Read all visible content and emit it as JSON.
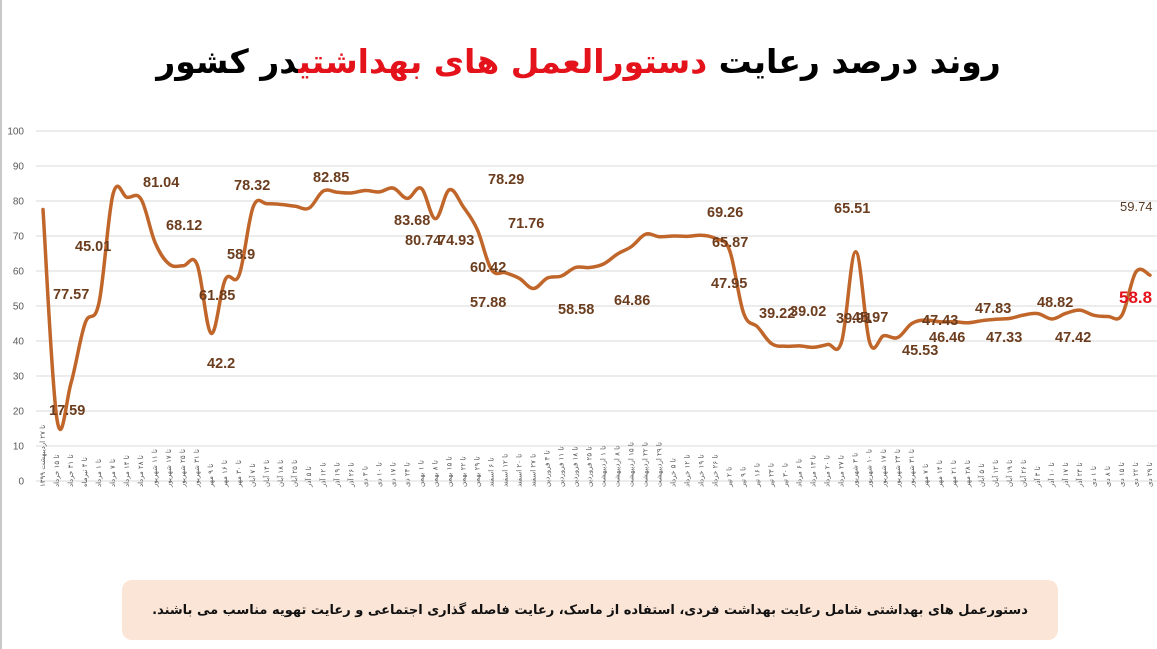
{
  "title": {
    "part1": "روند درصد رعایت ",
    "highlight": "دستورالعمل های بهداشتی",
    "part2": "در کشور",
    "highlight_color": "#e3121b"
  },
  "note": "دستورعمل های بهداشتی شامل رعایت بهداشت فردی، استفاده از ماسک، رعایت فاصله گذاری اجتماعی و رعایت تهویه مناسب می باشند.",
  "chart_data": {
    "type": "line",
    "title": "روند درصد رعایت دستورالعمل های بهداشتی در کشور",
    "xlabel": "",
    "ylabel": "",
    "ylim": [
      0,
      100
    ],
    "yticks": [
      0,
      10,
      20,
      30,
      40,
      50,
      60,
      70,
      80,
      90,
      100
    ],
    "grid": true,
    "legend": "none",
    "line_color": "#c0662a",
    "categories": [
      "تا ۲۷ اردیبهشت ۱۳۹۹",
      "تا ۱۵ خرداد",
      "تا ۳۱ خرداد",
      "تا ۴ تیرماه",
      "تا ۱ مرداد",
      "تا ۷ مرداد",
      "تا ۱۴ مرداد",
      "تا ۲۸ مرداد",
      "تا ۱۱ شهریور",
      "تا ۱۷ شهریور",
      "تا ۲۵ شهریور",
      "تا ۳۱ شهریور",
      "تا ۹ مهر",
      "تا ۱۶ مهر",
      "تا ۳۰ مهر",
      "تا ۷ آبان",
      "تا ۱۴ آبان",
      "تا ۱۸ آبان",
      "تا ۲۵ آبان",
      "تا ۵ آذر",
      "تا ۱۲ آذر",
      "تا ۱۹ آذر",
      "تا ۲۶ آذر",
      "تا ۳ دی",
      "تا ۱۰ دی",
      "تا ۱۷ دی",
      "تا ۲۴ دی",
      "تا ۱ بهمن",
      "تا ۸ بهمن",
      "تا ۱۵ بهمن",
      "تا ۲۲ بهمن",
      "تا ۲۹ بهمن",
      "تا ۶ اسفند",
      "تا ۱۲ اسفند",
      "تا ۲۰ اسفند",
      "تا ۲۷ اسفند",
      "تا ۴ فروردین",
      "تا ۱۱ فروردین",
      "تا ۱۸ فروردین",
      "تا ۲۵ فروردین",
      "تا ۱ اردیبهشت",
      "تا ۸ اردیبهشت",
      "تا ۱۵ اردیبهشت",
      "تا ۲۲ اردیبهشت",
      "تا ۲۹ اردیبهشت",
      "تا ۵ خرداد",
      "تا ۱۲ خرداد",
      "تا ۱۹ خرداد",
      "تا ۲۶ خرداد",
      "تا ۲ تیر",
      "تا ۹ تیر",
      "تا ۱۶ تیر",
      "تا ۲۳ تیر",
      "تا ۳۰ تیر",
      "تا ۶ مرداد",
      "تا ۱۳ مرداد",
      "تا ۲۰ مرداد",
      "تا ۲۷ مرداد",
      "تا ۳ شهریور",
      "تا ۱۰ شهریور",
      "تا ۱۷ شهریور",
      "تا ۲۴ شهریور",
      "تا ۳۱ شهریور",
      "تا ۷ مهر",
      "تا ۱۴ مهر",
      "تا ۲۱ مهر",
      "تا ۲۸ مهر",
      "تا ۵ آبان",
      "تا ۱۲ آبان",
      "تا ۱۹ آبان",
      "تا ۲۶ آبان",
      "تا ۳ آذر",
      "تا ۱۰ آذر",
      "تا ۱۷ آذر",
      "تا ۲۴ آذر",
      "تا ۱ دی",
      "تا ۸ دی",
      "تا ۱۵ دی",
      "تا ۲۲ دی",
      "تا ۲۹ دی"
    ],
    "values": [
      77.57,
      17.59,
      28.0,
      45.01,
      51.0,
      82.0,
      81.04,
      80.5,
      68.12,
      62.0,
      61.5,
      61.85,
      42.2,
      57.5,
      58.9,
      78.32,
      79.2,
      79.0,
      78.5,
      78.0,
      82.85,
      82.5,
      82.3,
      83.0,
      82.6,
      83.68,
      80.74,
      83.6,
      74.93,
      83.2,
      78.29,
      71.76,
      60.42,
      59.5,
      57.88,
      55.0,
      58.0,
      58.58,
      61.0,
      61.0,
      62.0,
      64.86,
      67.0,
      70.5,
      69.8,
      70.0,
      69.9,
      70.2,
      69.26,
      65.87,
      47.95,
      44.0,
      39.22,
      38.5,
      38.6,
      38.2,
      39.02,
      39.91,
      65.51,
      39.5,
      41.5,
      41.0,
      45.0,
      45.97,
      45.5,
      45.53,
      45.2,
      45.8,
      46.2,
      46.46,
      47.43,
      47.83,
      46.3,
      47.9,
      48.82,
      47.33,
      47.0,
      47.42,
      59.74,
      58.8
    ],
    "labeled_points": [
      {
        "label": "77.57"
      },
      {
        "label": "17.59"
      },
      {
        "label": "45.01"
      },
      {
        "label": "81.04"
      },
      {
        "label": "68.12"
      },
      {
        "label": "61.85"
      },
      {
        "label": "42.2"
      },
      {
        "label": "58.9"
      },
      {
        "label": "78.32"
      },
      {
        "label": "82.85"
      },
      {
        "label": "83.68"
      },
      {
        "label": "80.74"
      },
      {
        "label": "74.93"
      },
      {
        "label": "78.29"
      },
      {
        "label": "71.76"
      },
      {
        "label": "60.42"
      },
      {
        "label": "57.88"
      },
      {
        "label": "58.58"
      },
      {
        "label": "64.86"
      },
      {
        "label": "69.26"
      },
      {
        "label": "65.87"
      },
      {
        "label": "47.95"
      },
      {
        "label": "39.22"
      },
      {
        "label": "39.02"
      },
      {
        "label": "39.91"
      },
      {
        "label": "65.51"
      },
      {
        "label": "45.97"
      },
      {
        "label": "45.53"
      },
      {
        "label": "47.43"
      },
      {
        "label": "46.46"
      },
      {
        "label": "47.83"
      },
      {
        "label": "47.33"
      },
      {
        "label": "48.82"
      },
      {
        "label": "47.42"
      },
      {
        "label": "59.74"
      },
      {
        "label": "58.8"
      }
    ]
  }
}
